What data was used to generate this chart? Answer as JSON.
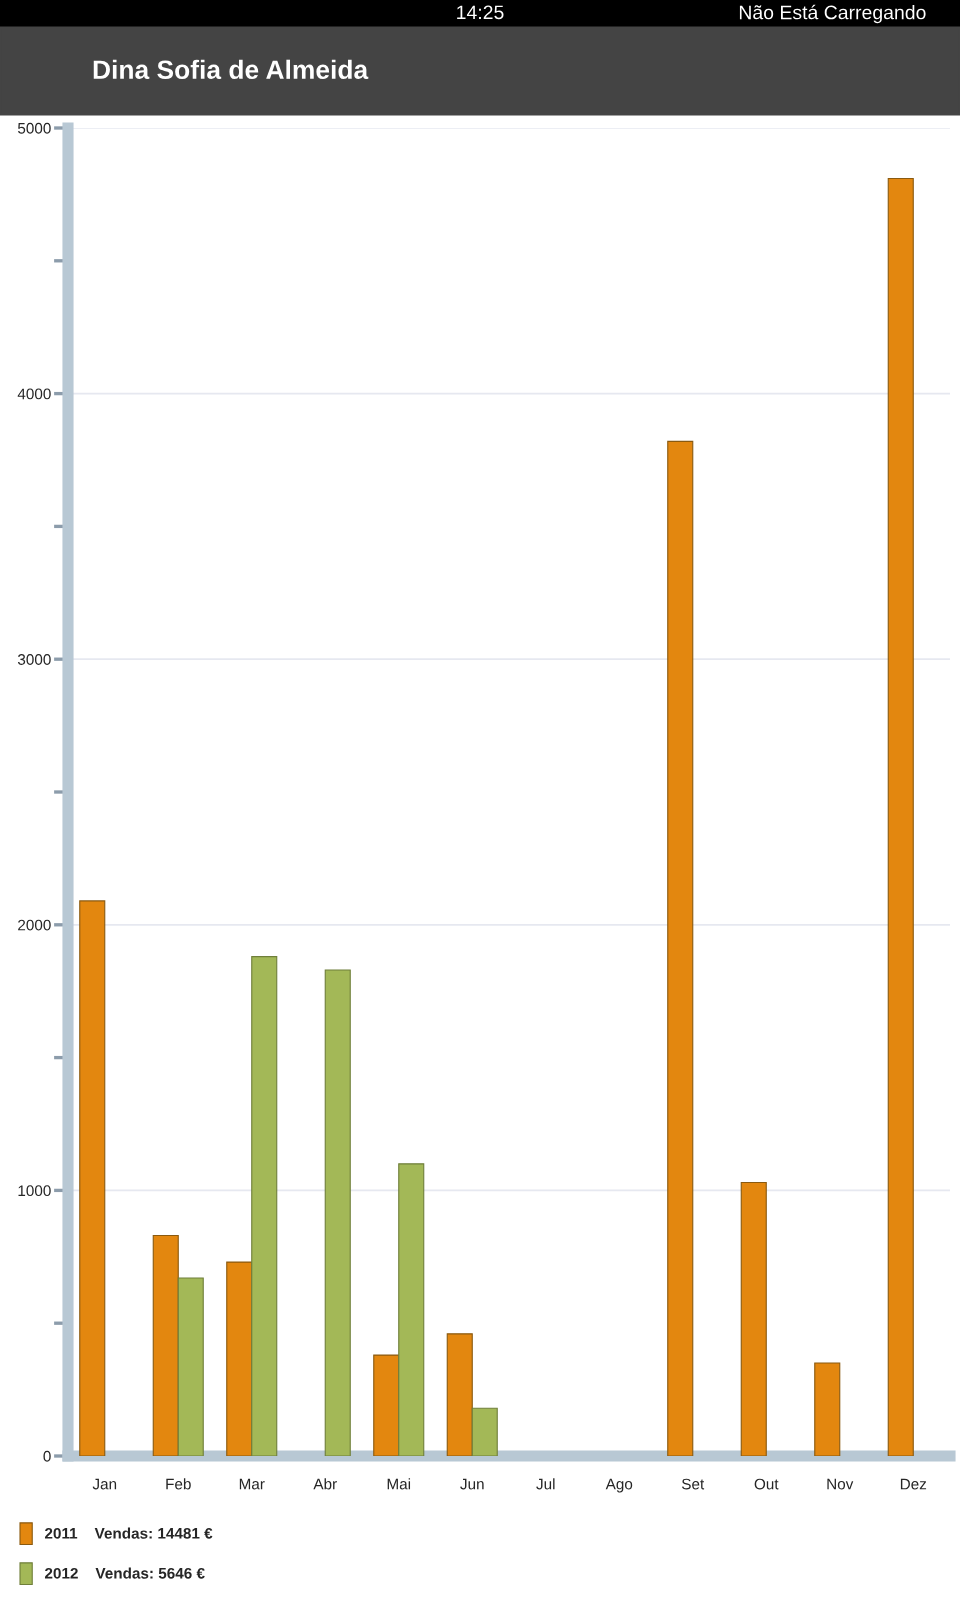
{
  "chart_data": {
    "type": "bar",
    "title": "Dina Sofia de Almeida",
    "annotations": [
      "14:25",
      "Não Está Carregando"
    ],
    "categories": [
      "Jan",
      "Feb",
      "Mar",
      "Abr",
      "Mai",
      "Jun",
      "Jul",
      "Ago",
      "Set",
      "Out",
      "Nov",
      "Dez"
    ],
    "series": [
      {
        "name": "2011    Vendas: 14481 €",
        "color": "#e3870f",
        "values": [
          2090,
          830,
          730,
          null,
          380,
          460,
          null,
          null,
          3820,
          1030,
          350,
          4810
        ]
      },
      {
        "name": "2012    Vendas: 5646 €",
        "color": "#a3b857",
        "values": [
          null,
          670,
          1880,
          1830,
          1100,
          180,
          null,
          null,
          null,
          null,
          null,
          null
        ]
      }
    ],
    "ylim": [
      0,
      5000
    ],
    "yticks": [
      0,
      {
        "value": 500,
        "label": null
      },
      1000,
      {
        "value": 1500,
        "label": null
      },
      2000,
      {
        "value": 2500,
        "label": null
      },
      3000,
      {
        "value": 3500,
        "label": null
      },
      4000,
      {
        "value": 4500,
        "label": null
      },
      5000
    ],
    "grid": "y",
    "legend": "bottom"
  }
}
